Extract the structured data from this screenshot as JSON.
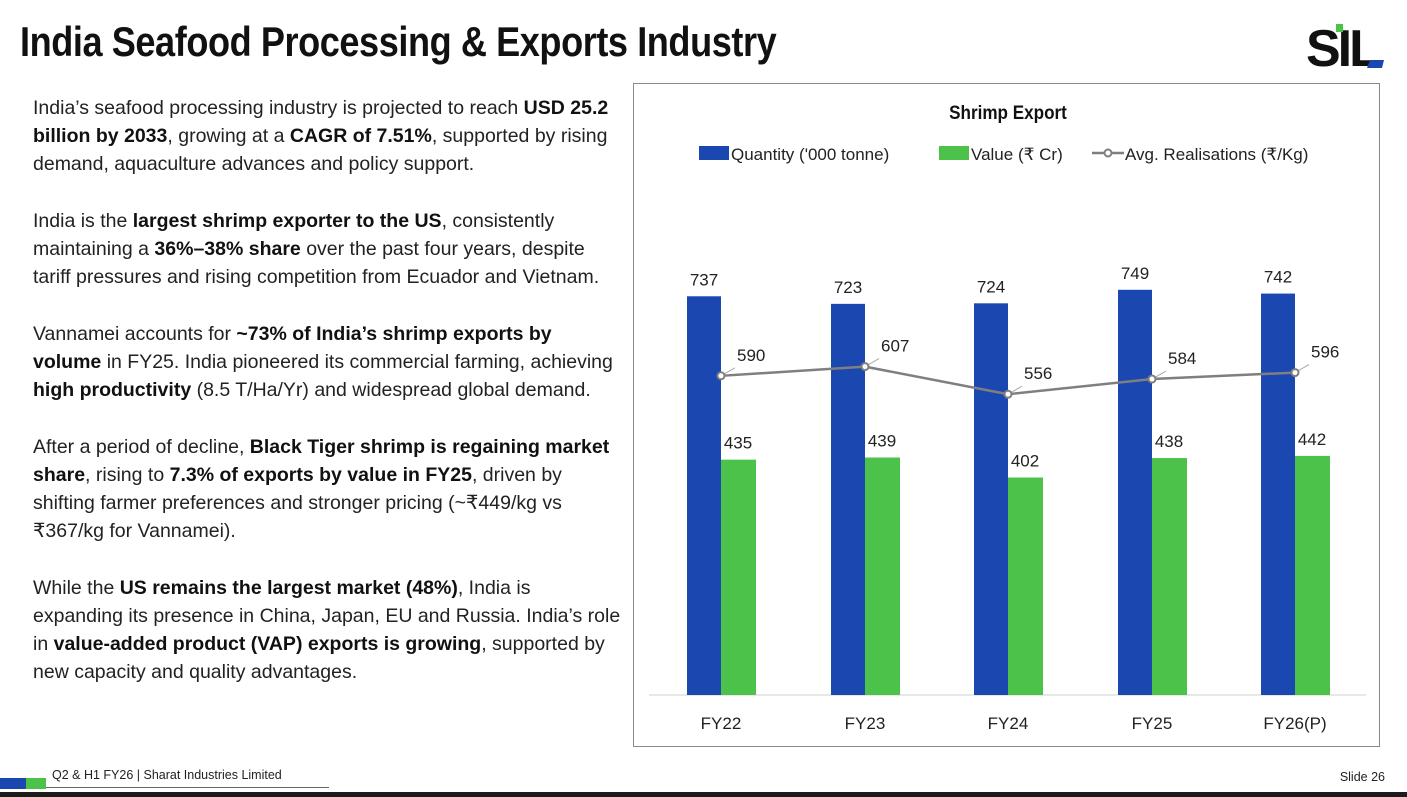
{
  "header": {
    "title": "India Seafood Processing & Exports Industry",
    "logo_text": "SIL"
  },
  "paragraphs": [
    [
      {
        "t": "India’s seafood processing industry is projected to reach "
      },
      {
        "t": "USD 25.2 billion by 2033",
        "b": true
      },
      {
        "t": ", growing at a "
      },
      {
        "t": "CAGR of 7.51%",
        "b": true
      },
      {
        "t": ", supported by rising demand, aquaculture advances and policy support."
      }
    ],
    [
      {
        "t": "India is the "
      },
      {
        "t": "largest shrimp exporter to the US",
        "b": true
      },
      {
        "t": ", consistently maintaining a "
      },
      {
        "t": "36%–38% share",
        "b": true
      },
      {
        "t": " over the past four years, despite tariff pressures and rising competition from Ecuador and Vietnam."
      }
    ],
    [
      {
        "t": "Vannamei accounts for "
      },
      {
        "t": "~73% of India’s shrimp exports by volume",
        "b": true
      },
      {
        "t": " in FY25. India pioneered its commercial farming, achieving "
      },
      {
        "t": "high productivity",
        "b": true
      },
      {
        "t": " (8.5 T/Ha/Yr) and widespread global demand."
      }
    ],
    [
      {
        "t": "After a period of decline, "
      },
      {
        "t": "Black Tiger shrimp is regaining market share",
        "b": true
      },
      {
        "t": ", rising to "
      },
      {
        "t": "7.3% of exports by value in FY25",
        "b": true
      },
      {
        "t": ", driven by shifting farmer preferences and stronger pricing (~₹449/kg vs ₹367/kg for Vannamei)."
      }
    ],
    [
      {
        "t": "While the "
      },
      {
        "t": "US remains the largest market (48%)",
        "b": true
      },
      {
        "t": ", India is expanding its presence in China, Japan, EU and Russia. India’s role in "
      },
      {
        "t": "value-added product (VAP) exports is growing",
        "b": true
      },
      {
        "t": ", supported by new capacity and quality advantages."
      }
    ]
  ],
  "chart_data": {
    "type": "bar",
    "title": "Shrimp Export",
    "categories": [
      "FY22",
      "FY23",
      "FY24",
      "FY25",
      "FY26(P)"
    ],
    "series": [
      {
        "name": "Quantity ('000 tonne)",
        "kind": "bar",
        "color": "#1a47b0",
        "values": [
          737,
          723,
          724,
          749,
          742
        ]
      },
      {
        "name": "Value (₹ Cr)",
        "kind": "bar",
        "color": "#4cc24a",
        "values": [
          435,
          439,
          402,
          438,
          442
        ]
      },
      {
        "name": "Avg. Realisations (₹/Kg)",
        "kind": "line",
        "color": "#7f7f7f",
        "values": [
          590,
          607,
          556,
          584,
          596
        ]
      }
    ],
    "legend": "top",
    "grid": false,
    "ylim": [
      0,
      800
    ]
  },
  "footer": {
    "text": "Q2 & H1 FY26 | Sharat Industries Limited",
    "slide": "Slide 26"
  },
  "colors": {
    "blue": "#1a47b0",
    "green": "#4cc24a",
    "grey": "#7f7f7f"
  }
}
